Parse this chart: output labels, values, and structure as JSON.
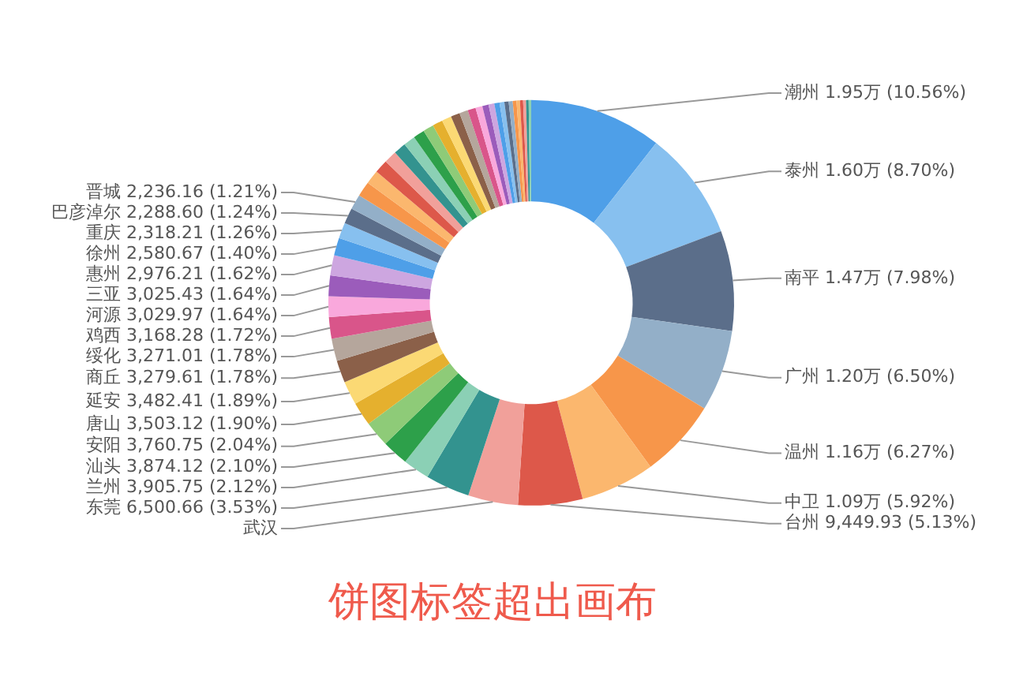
{
  "chart_data": {
    "type": "donut",
    "title": "饼图标签超出画布",
    "categories": [
      "潮州",
      "泰州",
      "南平",
      "广州",
      "温州",
      "中卫",
      "台州",
      "武汉",
      "东莞",
      "兰州",
      "汕头",
      "安阳",
      "唐山",
      "延安",
      "商丘",
      "绥化",
      "鸡西",
      "河源",
      "三亚",
      "惠州",
      "徐州",
      "重庆",
      "巴彦淖尔",
      "晋城",
      null,
      null,
      null,
      null,
      null,
      null,
      null,
      null,
      null,
      null,
      null,
      null,
      null,
      null,
      null,
      null,
      null,
      null,
      null,
      null,
      null,
      null,
      null,
      null,
      null,
      null
    ],
    "values": [
      10.56,
      8.7,
      7.98,
      6.5,
      6.27,
      5.92,
      5.13,
      3.98,
      3.53,
      2.12,
      2.1,
      2.04,
      1.9,
      1.89,
      1.78,
      1.78,
      1.72,
      1.64,
      1.64,
      1.62,
      1.4,
      1.26,
      1.24,
      1.21,
      1.2,
      1.11,
      1.07,
      1.02,
      0.98,
      0.94,
      0.9,
      0.85,
      0.81,
      0.77,
      0.72,
      0.68,
      0.64,
      0.55,
      0.5,
      0.46,
      0.42,
      0.38,
      0.34,
      0.32,
      0.3,
      0.27,
      0.25,
      0.23,
      0.21,
      0.2
    ],
    "value_labels": [
      "1.95万 (10.56%)",
      "1.60万 (8.70%)",
      "1.47万 (7.98%)",
      "1.20万 (6.50%)",
      "1.16万 (6.27%)",
      "1.09万 (5.92%)",
      "9,449.93 (5.13%)",
      null,
      "6,500.66 (3.53%)",
      "3,905.75 (2.12%)",
      "3,874.12 (2.10%)",
      "3,760.75 (2.04%)",
      "3,503.12 (1.90%)",
      "3,482.41 (1.89%)",
      "3,279.61 (1.78%)",
      "3,271.01 (1.78%)",
      "3,168.28 (1.72%)",
      "3,029.97 (1.64%)",
      "3,025.43 (1.64%)",
      "2,976.21 (1.62%)",
      "2,580.67 (1.40%)",
      "2,318.21 (1.26%)",
      "2,288.60 (1.24%)",
      "2,236.16 (1.21%)",
      null,
      null,
      null,
      null,
      null,
      null,
      null,
      null,
      null,
      null,
      null,
      null,
      null,
      null,
      null,
      null,
      null,
      null,
      null,
      null,
      null,
      null,
      null,
      null,
      null,
      null
    ],
    "colors": [
      "#4e9fe8",
      "#87c0ef",
      "#5b6e8a",
      "#93afc8",
      "#f7964a",
      "#fbb76e",
      "#dd584a",
      "#f1a09a",
      "#33938f",
      "#8bd0b5",
      "#2da04a",
      "#8ecb78",
      "#e5b02e",
      "#fbd974",
      "#8b6049",
      "#b5a69c",
      "#d9558a",
      "#f9a8dc",
      "#9b5cbb",
      "#cda6e0",
      "#4e9fe8",
      "#87c0ef",
      "#5b6e8a",
      "#93afc8",
      "#f7964a",
      "#fbb76e",
      "#dd584a",
      "#f1a09a",
      "#33938f",
      "#8bd0b5",
      "#2da04a",
      "#8ecb78",
      "#e5b02e",
      "#fbd974",
      "#8b6049",
      "#b5a69c",
      "#d9558a",
      "#f9a8dc",
      "#9b5cbb",
      "#cda6e0",
      "#4e9fe8",
      "#87c0ef",
      "#5b6e8a",
      "#93afc8",
      "#f7964a",
      "#fbb76e",
      "#dd584a",
      "#f1a09a",
      "#33938f",
      "#8bd0b5"
    ],
    "legend": false
  }
}
